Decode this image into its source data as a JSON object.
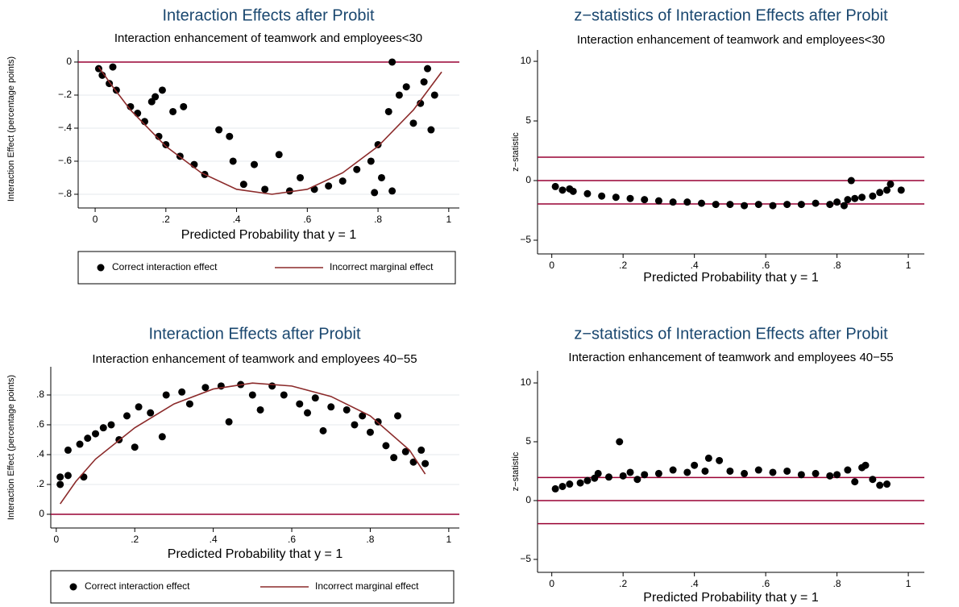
{
  "chart_data": [
    {
      "type": "scatter",
      "title": "Interaction Effects after Probit",
      "subtitle": "Interaction enhancement of teamwork and employees<30",
      "xlabel": "Predicted Probability that y = 1",
      "ylabel": "Interaction Effect (percentage points)",
      "xlim": [
        -0.048,
        1.03
      ],
      "ylim": [
        -0.883,
        0.073
      ],
      "xticks": [
        0,
        {
          "value": 0.2,
          "label": ".2"
        },
        {
          "value": 0.4,
          "label": ".4"
        },
        {
          "value": 0.6,
          "label": ".6"
        },
        {
          "value": 0.8,
          "label": ".8"
        },
        1
      ],
      "yticks": [
        0,
        {
          "value": -0.2,
          "label": "−.2"
        },
        {
          "value": -0.4,
          "label": "−.4"
        },
        {
          "value": -0.6,
          "label": "−.6"
        },
        {
          "value": -0.8,
          "label": "−.8"
        }
      ],
      "grid": true,
      "hlines": [
        0
      ],
      "hline_color": "#990033",
      "legend": "bottom",
      "series": [
        {
          "name": "Correct interaction effect",
          "type": "scatter",
          "color": "#000000",
          "x": [
            0.01,
            0.02,
            0.05,
            0.04,
            0.06,
            0.1,
            0.12,
            0.14,
            0.16,
            0.17,
            0.19,
            0.18,
            0.2,
            0.22,
            0.25,
            0.24,
            0.28,
            0.31,
            0.35,
            0.38,
            0.39,
            0.42,
            0.45,
            0.48,
            0.52,
            0.55,
            0.58,
            0.62,
            0.66,
            0.7,
            0.74,
            0.78,
            0.79,
            0.8,
            0.81,
            0.83,
            0.84,
            0.84,
            0.86,
            0.88,
            0.9,
            0.92,
            0.93,
            0.94,
            0.95,
            0.96
          ],
          "values": [
            -0.04,
            -0.08,
            -0.03,
            -0.13,
            -0.17,
            -0.27,
            -0.31,
            -0.36,
            -0.24,
            -0.21,
            -0.17,
            -0.45,
            -0.5,
            -0.3,
            -0.27,
            -0.57,
            -0.62,
            -0.68,
            -0.41,
            -0.45,
            -0.6,
            -0.74,
            -0.62,
            -0.77,
            -0.56,
            -0.78,
            -0.7,
            -0.77,
            -0.75,
            -0.72,
            -0.65,
            -0.6,
            -0.79,
            -0.5,
            -0.7,
            -0.3,
            0,
            -0.78,
            -0.2,
            -0.15,
            -0.37,
            -0.25,
            -0.12,
            -0.04,
            -0.41,
            -0.2
          ]
        },
        {
          "name": "Incorrect marginal effect",
          "type": "line",
          "color": "#8b2a2a",
          "x": [
            0.01,
            0.05,
            0.1,
            0.2,
            0.3,
            0.4,
            0.5,
            0.6,
            0.7,
            0.8,
            0.9,
            0.98
          ],
          "values": [
            -0.03,
            -0.15,
            -0.29,
            -0.51,
            -0.67,
            -0.77,
            -0.8,
            -0.77,
            -0.67,
            -0.51,
            -0.29,
            -0.06
          ]
        }
      ]
    },
    {
      "type": "scatter",
      "title": "z−statistics of Interaction Effects after Probit",
      "subtitle": "Interaction enhancement of teamwork and employees<30",
      "xlabel": "Predicted Probability that y = 1",
      "ylabel": "z−statistic",
      "xlim": [
        -0.04,
        1.045
      ],
      "ylim": [
        -6.15,
        10.95
      ],
      "xticks": [
        0,
        {
          "value": 0.2,
          "label": ".2"
        },
        {
          "value": 0.4,
          "label": ".4"
        },
        {
          "value": 0.6,
          "label": ".6"
        },
        {
          "value": 0.8,
          "label": ".8"
        },
        1
      ],
      "yticks": [
        {
          "value": -5,
          "label": "−5"
        },
        0,
        5,
        10
      ],
      "grid": false,
      "hlines": [
        1.96,
        0,
        -1.96
      ],
      "hline_color": "#990033",
      "series": [
        {
          "type": "scatter",
          "color": "#000000",
          "x": [
            0.01,
            0.03,
            0.05,
            0.06,
            0.1,
            0.14,
            0.18,
            0.22,
            0.26,
            0.3,
            0.34,
            0.38,
            0.42,
            0.46,
            0.5,
            0.54,
            0.58,
            0.62,
            0.66,
            0.7,
            0.74,
            0.78,
            0.8,
            0.82,
            0.83,
            0.84,
            0.85,
            0.87,
            0.9,
            0.92,
            0.94,
            0.95,
            0.98
          ],
          "values": [
            -0.5,
            -0.8,
            -0.7,
            -0.9,
            -1.1,
            -1.3,
            -1.4,
            -1.5,
            -1.6,
            -1.7,
            -1.8,
            -1.8,
            -1.9,
            -2.0,
            -2.0,
            -2.1,
            -2.0,
            -2.1,
            -2.0,
            -2.0,
            -1.9,
            -2.0,
            -1.8,
            -2.1,
            -1.6,
            0.0,
            -1.5,
            -1.4,
            -1.3,
            -1.0,
            -0.8,
            -0.3,
            -0.8
          ]
        }
      ]
    },
    {
      "type": "scatter",
      "title": "Interaction Effects after Probit",
      "subtitle": "Interaction enhancement of teamwork and employees 40−55",
      "xlabel": "Predicted Probability that y = 1",
      "ylabel": "Interaction Effect (percentage points)",
      "xlim": [
        -0.014,
        1.027
      ],
      "ylim": [
        -0.092,
        0.989
      ],
      "xticks": [
        0,
        {
          "value": 0.2,
          "label": ".2"
        },
        {
          "value": 0.4,
          "label": ".4"
        },
        {
          "value": 0.6,
          "label": ".6"
        },
        {
          "value": 0.8,
          "label": ".8"
        },
        1
      ],
      "yticks": [
        0,
        {
          "value": 0.2,
          "label": ".2"
        },
        {
          "value": 0.4,
          "label": ".4"
        },
        {
          "value": 0.6,
          "label": ".6"
        },
        {
          "value": 0.8,
          "label": ".8"
        }
      ],
      "grid": true,
      "hlines": [
        0
      ],
      "hline_color": "#990033",
      "legend": "bottom",
      "series": [
        {
          "name": "Correct interaction effect",
          "type": "scatter",
          "color": "#000000",
          "x": [
            0.01,
            0.01,
            0.03,
            0.03,
            0.06,
            0.07,
            0.08,
            0.1,
            0.12,
            0.14,
            0.16,
            0.18,
            0.2,
            0.21,
            0.24,
            0.27,
            0.28,
            0.32,
            0.34,
            0.38,
            0.42,
            0.44,
            0.47,
            0.5,
            0.52,
            0.55,
            0.58,
            0.62,
            0.64,
            0.66,
            0.68,
            0.7,
            0.74,
            0.76,
            0.78,
            0.8,
            0.82,
            0.84,
            0.86,
            0.87,
            0.89,
            0.91,
            0.93,
            0.94
          ],
          "values": [
            0.25,
            0.2,
            0.26,
            0.43,
            0.47,
            0.25,
            0.51,
            0.54,
            0.58,
            0.6,
            0.5,
            0.66,
            0.45,
            0.72,
            0.68,
            0.52,
            0.8,
            0.82,
            0.74,
            0.85,
            0.86,
            0.62,
            0.87,
            0.8,
            0.7,
            0.86,
            0.8,
            0.74,
            0.68,
            0.78,
            0.56,
            0.72,
            0.7,
            0.6,
            0.66,
            0.55,
            0.62,
            0.46,
            0.38,
            0.66,
            0.42,
            0.35,
            0.43,
            0.34
          ]
        },
        {
          "name": "Incorrect marginal effect",
          "type": "line",
          "color": "#8b2a2a",
          "x": [
            0.01,
            0.05,
            0.1,
            0.2,
            0.3,
            0.4,
            0.5,
            0.6,
            0.7,
            0.8,
            0.9,
            0.94
          ],
          "values": [
            0.07,
            0.22,
            0.37,
            0.58,
            0.74,
            0.84,
            0.88,
            0.86,
            0.79,
            0.66,
            0.43,
            0.27
          ]
        }
      ]
    },
    {
      "type": "scatter",
      "title": "z−statistics of Interaction Effects after Probit",
      "subtitle": "Interaction enhancement of teamwork and employees 40−55",
      "xlabel": "Predicted Probability that y = 1",
      "ylabel": "z−statistic",
      "xlim": [
        -0.04,
        1.045
      ],
      "ylim": [
        -6.1,
        11.03
      ],
      "xticks": [
        0,
        {
          "value": 0.2,
          "label": ".2"
        },
        {
          "value": 0.4,
          "label": ".4"
        },
        {
          "value": 0.6,
          "label": ".6"
        },
        {
          "value": 0.8,
          "label": ".8"
        },
        1
      ],
      "yticks": [
        {
          "value": -5,
          "label": "−5"
        },
        0,
        5,
        10
      ],
      "grid": false,
      "hlines": [
        1.96,
        0,
        -1.96
      ],
      "hline_color": "#990033",
      "series": [
        {
          "type": "scatter",
          "color": "#000000",
          "x": [
            0.01,
            0.03,
            0.05,
            0.08,
            0.1,
            0.12,
            0.13,
            0.16,
            0.19,
            0.2,
            0.22,
            0.24,
            0.26,
            0.3,
            0.34,
            0.38,
            0.4,
            0.43,
            0.44,
            0.47,
            0.5,
            0.54,
            0.58,
            0.62,
            0.66,
            0.7,
            0.74,
            0.78,
            0.8,
            0.83,
            0.85,
            0.87,
            0.88,
            0.9,
            0.92,
            0.94
          ],
          "values": [
            1.0,
            1.2,
            1.4,
            1.5,
            1.7,
            1.9,
            2.3,
            2.0,
            5.0,
            2.1,
            2.4,
            1.8,
            2.2,
            2.3,
            2.6,
            2.4,
            3.0,
            2.5,
            3.6,
            3.4,
            2.5,
            2.3,
            2.6,
            2.4,
            2.5,
            2.2,
            2.3,
            2.1,
            2.2,
            2.6,
            1.6,
            2.8,
            3.0,
            1.8,
            1.3,
            1.4
          ]
        }
      ]
    }
  ]
}
